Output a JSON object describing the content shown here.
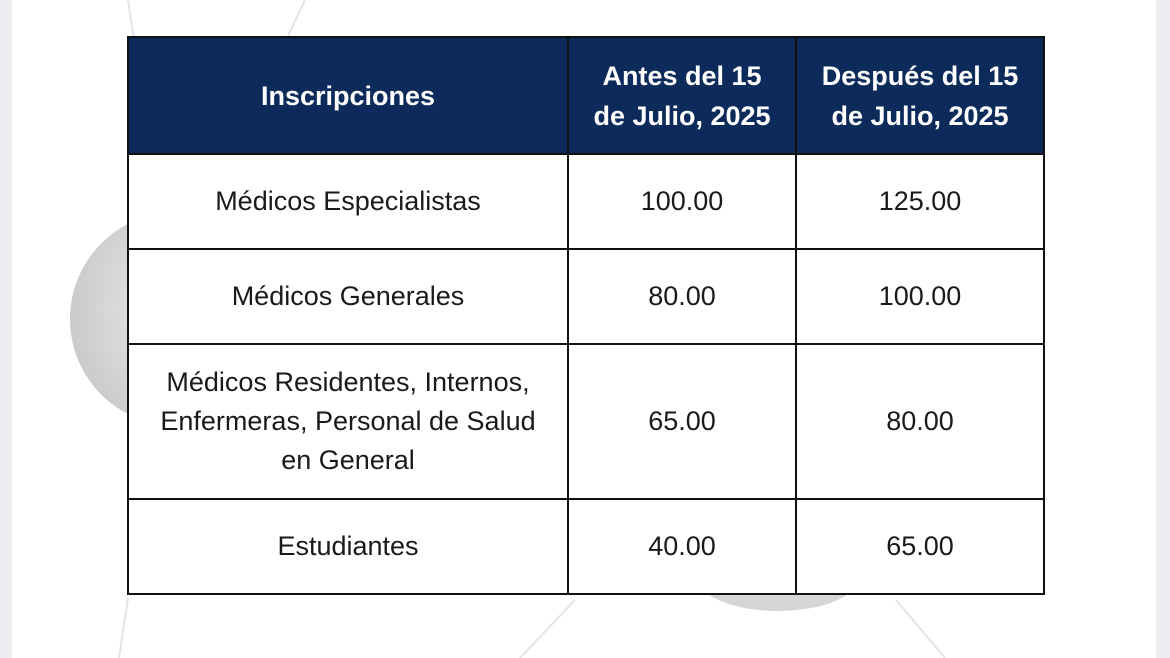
{
  "table": {
    "headers": {
      "category": "Inscripciones",
      "before_line1": "Antes del 15",
      "before_line2": "de Julio, 2025",
      "after_line1": "Después del 15",
      "after_line2": "de Julio, 2025"
    },
    "rows": [
      {
        "category_lines": [
          "Médicos Especialistas"
        ],
        "before": "100.00",
        "after": "125.00"
      },
      {
        "category_lines": [
          "Médicos Generales"
        ],
        "before": "80.00",
        "after": "100.00"
      },
      {
        "category_lines": [
          "Médicos Residentes, Internos,",
          "Enfermeras, Personal de Salud",
          "en General"
        ],
        "before": "65.00",
        "after": "80.00"
      },
      {
        "category_lines": [
          "Estudiantes"
        ],
        "before": "40.00",
        "after": "65.00"
      }
    ]
  },
  "colors": {
    "header_background": "#0d2b5a",
    "header_text": "#ffffff",
    "border": "#111111"
  }
}
